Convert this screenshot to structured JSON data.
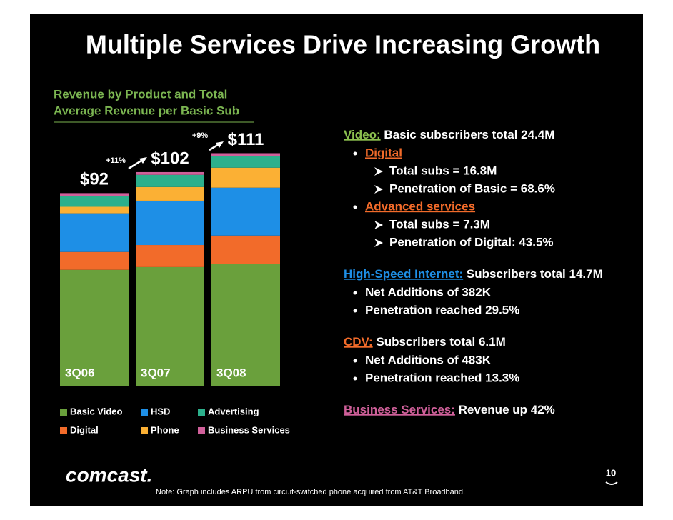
{
  "title": "Multiple Services Drive Increasing Growth",
  "chart_data": {
    "type": "bar",
    "stacked": true,
    "subtitle": [
      "Revenue by Product and Total",
      "Average Revenue per Basic Sub"
    ],
    "categories": [
      "3Q06",
      "3Q07",
      "3Q08"
    ],
    "series": [
      {
        "name": "Basic Video",
        "color": "#6aa03c",
        "values": [
          55.5,
          56.8,
          58.2
        ]
      },
      {
        "name": "Digital",
        "color": "#f26b2a",
        "values": [
          8.5,
          10.5,
          13.6
        ]
      },
      {
        "name": "HSD",
        "color": "#1e8fe6",
        "values": [
          18.4,
          21.1,
          22.8
        ]
      },
      {
        "name": "Phone",
        "color": "#fbb034",
        "values": [
          3.1,
          6.5,
          9.5
        ]
      },
      {
        "name": "Advertising",
        "color": "#2cb08c",
        "values": [
          5.1,
          5.8,
          5.4
        ]
      },
      {
        "name": "Business Services",
        "color": "#d0609a",
        "values": [
          1.4,
          1.3,
          1.5
        ]
      }
    ],
    "totals": [
      92,
      102,
      111
    ],
    "total_labels": [
      "$92",
      "$102",
      "$111"
    ],
    "annotations": [
      "+11%",
      "+9%"
    ],
    "ylim": [
      0,
      120
    ]
  },
  "highlights": [
    {
      "heading": "Video:",
      "color": "#8cc04f",
      "text": "Basic subscribers total 24.4M",
      "items": [
        {
          "text": "Digital",
          "color": "#f26b2a",
          "subitems": [
            "Total subs = 16.8M",
            "Penetration of Basic = 68.6%"
          ]
        },
        {
          "text": "Advanced services",
          "color": "#f26b2a",
          "subitems": [
            "Total subs = 7.3M",
            "Penetration of Digital: 43.5%"
          ]
        }
      ]
    },
    {
      "heading": "High-Speed Internet:",
      "color": "#1e8fe6",
      "text": "Subscribers total 14.7M",
      "items": [
        {
          "text": "Net Additions of 382K",
          "subitems": []
        },
        {
          "text": "Penetration reached 29.5%",
          "subitems": []
        }
      ]
    },
    {
      "heading": "CDV:",
      "color": "#f26b2a",
      "text": "Subscribers total 6.1M",
      "items": [
        {
          "text": "Net Additions of 483K",
          "subitems": []
        },
        {
          "text": "Penetration reached 13.3%",
          "subitems": []
        }
      ]
    },
    {
      "heading": "Business Services:",
      "color": "#d0609a",
      "text": "Revenue up 42%",
      "items": []
    }
  ],
  "logo": "comcast.",
  "page_number": "10",
  "note": "Note: Graph includes ARPU from circuit-switched phone acquired from AT&T Broadband."
}
